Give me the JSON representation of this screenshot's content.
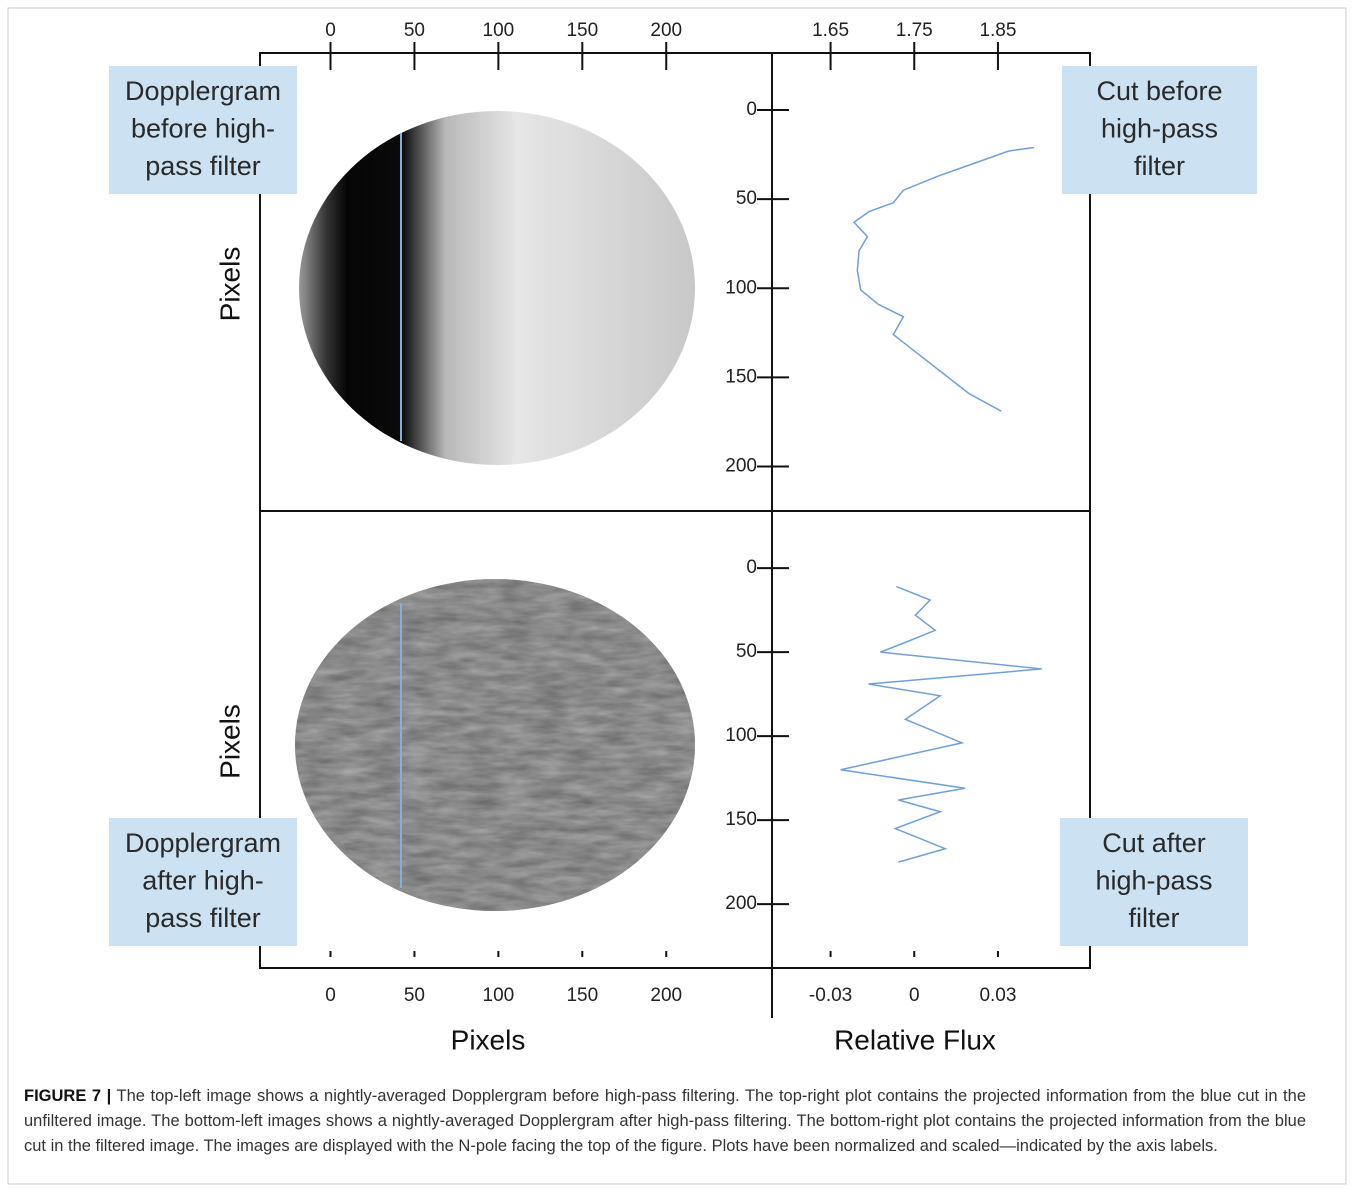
{
  "images": [
    {
      "label_lines": [
        "Dopplergram",
        "before high-",
        "pass filter"
      ],
      "ylabel": "Pixels",
      "xlim": [
        -42,
        263
      ],
      "xticks": [
        0,
        50,
        100,
        150,
        200
      ]
    },
    {
      "label_lines": [
        "Dopplergram",
        "after high-",
        "pass filter"
      ],
      "ylabel": "Pixels",
      "xlabel": "Pixels",
      "xlim": [
        -42,
        263
      ],
      "xticks": [
        0,
        50,
        100,
        150,
        200
      ]
    }
  ],
  "chart_data": [
    {
      "type": "line",
      "label_lines": [
        "Cut before",
        "high-pass",
        "filter"
      ],
      "xlim": [
        1.58,
        1.96
      ],
      "xticks": [
        1.65,
        1.75,
        1.85
      ],
      "ylim": [
        -32,
        225
      ],
      "yticks": [
        0,
        50,
        100,
        150,
        200
      ],
      "y_inverted": true,
      "series": [
        {
          "color": "#6fa0d8",
          "x": [
            1.893,
            1.863,
            1.821,
            1.779,
            1.737,
            1.725,
            1.696,
            1.678,
            1.694,
            1.684,
            1.682,
            1.686,
            1.707,
            1.737,
            1.725,
            1.755,
            1.785,
            1.815,
            1.854
          ],
          "y": [
            21,
            23,
            30,
            37,
            45,
            52,
            57,
            63,
            71,
            79,
            90,
            101,
            109,
            116,
            126,
            137,
            148,
            159,
            169
          ]
        }
      ]
    },
    {
      "type": "line",
      "label_lines": [
        "Cut after",
        "high-pass",
        "filter"
      ],
      "xlabel": "Relative Flux",
      "xlim": [
        -0.051,
        0.063
      ],
      "xticks": [
        -0.03,
        0,
        0.03
      ],
      "ylim": [
        -34,
        238
      ],
      "yticks": [
        0,
        50,
        100,
        150,
        200
      ],
      "y_inverted": true,
      "series": [
        {
          "color": "#6fa0d8",
          "x": [
            -0.0064,
            0.0057,
            0.0004,
            0.0075,
            -0.0014,
            -0.0121,
            0.0457,
            -0.0164,
            0.0093,
            -0.0032,
            0.0171,
            -0.0264,
            0.0182,
            -0.0057,
            0.0093,
            -0.0068,
            0.0111,
            -0.0057
          ],
          "y": [
            11,
            19,
            28,
            37,
            43,
            50,
            60,
            69,
            76,
            90,
            104,
            120,
            131,
            138,
            145,
            155,
            167,
            175
          ]
        }
      ]
    }
  ],
  "caption": {
    "label": "FIGURE 7 |",
    "text": "The top-left image shows a nightly-averaged Dopplergram before high-pass filtering. The top-right plot contains the projected information from the blue cut in the unfiltered image. The bottom-left images shows a nightly-averaged Dopplergram after high-pass filtering. The bottom-right plot contains the projected information from the blue cut in the filtered image. The images are displayed with the N-pole facing the top of the figure. Plots have been normalized and scaled—indicated by the axis labels."
  }
}
